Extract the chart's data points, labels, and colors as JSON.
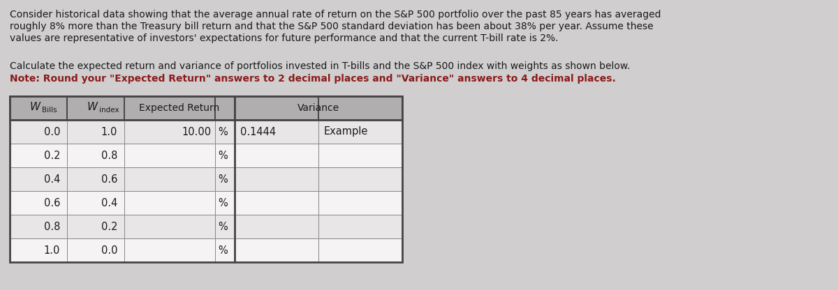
{
  "para1_line1": "Consider historical data showing that the average annual rate of return on the S&P 500 portfolio over the past 85 years has averaged",
  "para1_line2": "roughly 8% more than the Treasury bill return and that the S&P 500 standard deviation has been about 38% per year. Assume these",
  "para1_line3": "values are representative of investors' expectations for future performance and that the current T-bill rate is 2%.",
  "para2": "Calculate the expected return and variance of portfolios invested in T-bills and the S&P 500 index with weights as shown below.",
  "para3": "Note: Round your \"Expected Return\" answers to 2 decimal places and \"Variance\" answers to 4 decimal places.",
  "wbills": [
    "0.0",
    "0.2",
    "0.4",
    "0.6",
    "0.8",
    "1.0"
  ],
  "windex": [
    "1.0",
    "0.8",
    "0.6",
    "0.4",
    "0.2",
    "0.0"
  ],
  "exp_return_row0": "10.00",
  "variance_row0": "0.1444",
  "example_text": "Example",
  "fig_bg": "#d0cece",
  "text_color": "#1a1a1a",
  "bold_color": "#8b1a1a",
  "header_bg": "#b0aeae",
  "row_bg": "#e8e6e6",
  "cell_bg": "#f5f3f3",
  "border_dark": "#444444",
  "border_light": "#888888",
  "body_fontsize": 10.0,
  "table_fontsize": 10.5
}
